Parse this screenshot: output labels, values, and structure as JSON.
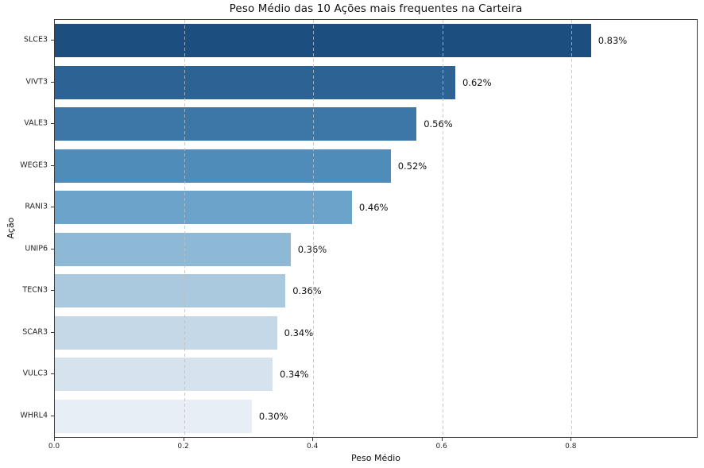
{
  "chart_data": {
    "type": "bar",
    "orientation": "horizontal",
    "title": "Peso Médio das 10 Ações mais frequentes na Carteira",
    "xlabel": "Peso Médio",
    "ylabel": "Ação",
    "categories": [
      "SLCE3",
      "VIVT3",
      "VALE3",
      "WEGE3",
      "RANI3",
      "UNIP6",
      "TECN3",
      "SCAR3",
      "VULC3",
      "WHRL4"
    ],
    "values": [
      0.83,
      0.62,
      0.56,
      0.52,
      0.46,
      0.365,
      0.357,
      0.344,
      0.337,
      0.305
    ],
    "value_labels": [
      "0.83%",
      "0.62%",
      "0.56%",
      "0.52%",
      "0.46%",
      "0.36%",
      "0.36%",
      "0.34%",
      "0.34%",
      "0.30%"
    ],
    "bar_colors": [
      "#1d4e80",
      "#2d6295",
      "#3c77a8",
      "#4f8cba",
      "#6ba3cb",
      "#8db8d6",
      "#aac8de",
      "#c5d8e8",
      "#d7e2ef",
      "#e8eef6"
    ],
    "x_ticks": [
      "0.0",
      "0.2",
      "0.4",
      "0.6",
      "0.8"
    ],
    "x_tick_values": [
      0.0,
      0.2,
      0.4,
      0.6,
      0.8
    ],
    "xlim": [
      0,
      0.994
    ],
    "grid": {
      "axis": "x",
      "style": "dashed",
      "color": "#cccccc",
      "drawn_over_bars": true
    },
    "legend": "none"
  }
}
